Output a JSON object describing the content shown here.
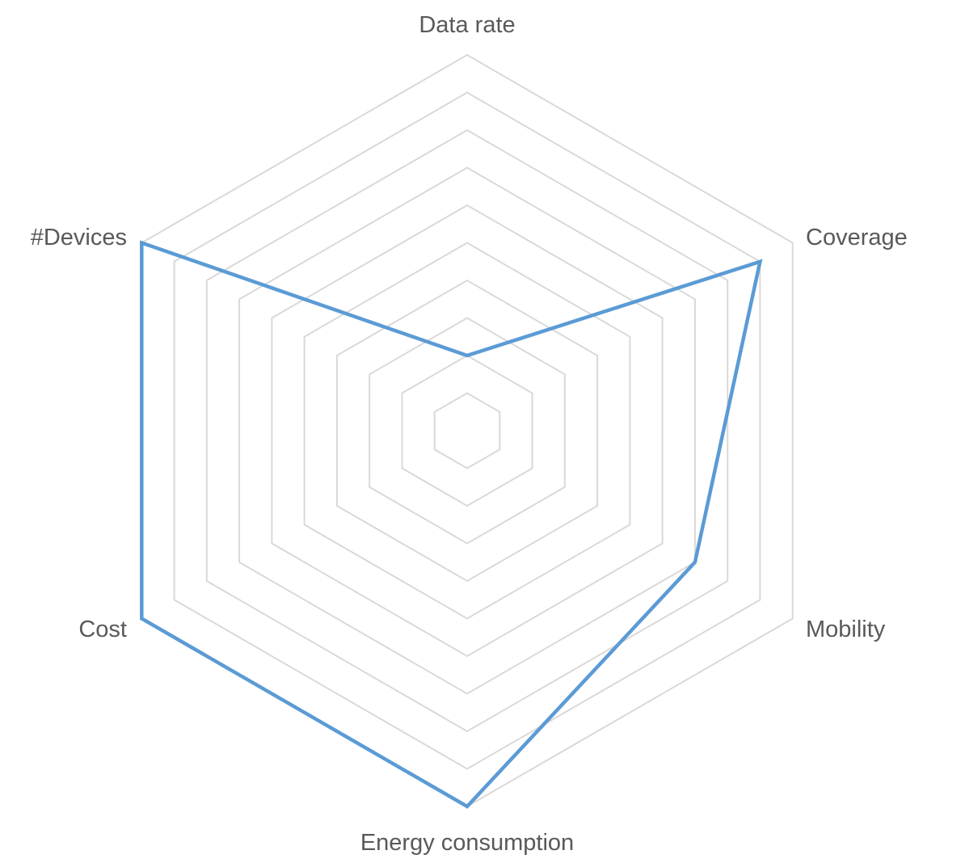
{
  "chart_data": {
    "type": "radar",
    "title": "",
    "axes": [
      "Data rate",
      "Coverage",
      "Mobility",
      "Energy consumption",
      "Cost",
      "#Devices"
    ],
    "rmin": 0,
    "rmax": 10,
    "ring_count": 10,
    "grid": true,
    "legend": "none",
    "series": [
      {
        "values": [
          2,
          9,
          7,
          10,
          10,
          10
        ],
        "color": "#5b9bd5"
      }
    ]
  }
}
